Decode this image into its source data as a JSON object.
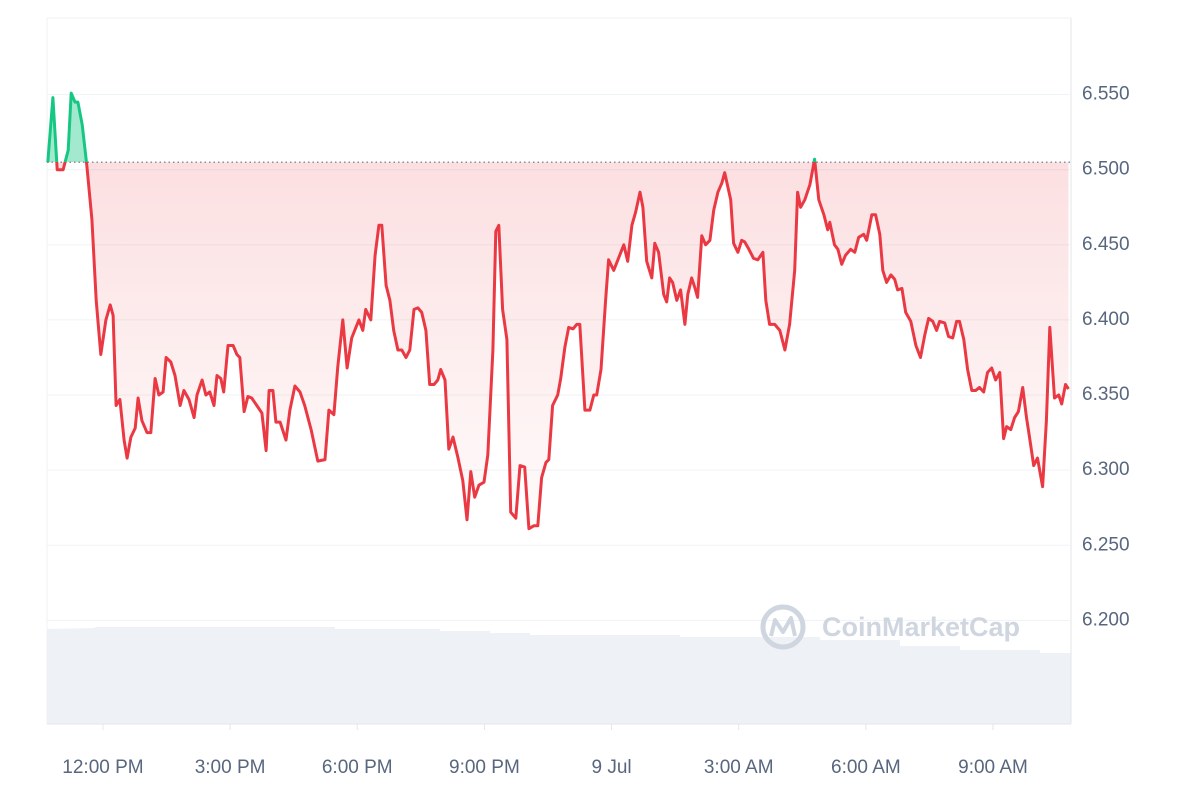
{
  "chart_data": {
    "type": "line",
    "watermark": "CoinMarketCap",
    "x": [
      10.7,
      10.82,
      10.92,
      11.06,
      11.18,
      11.25,
      11.34,
      11.41,
      11.51,
      11.62,
      11.74,
      11.84,
      11.95,
      12.07,
      12.17,
      12.24,
      12.31,
      12.4,
      12.5,
      12.57,
      12.66,
      12.76,
      12.83,
      12.92,
      13.04,
      13.13,
      13.23,
      13.32,
      13.42,
      13.49,
      13.6,
      13.7,
      13.82,
      13.91,
      14.03,
      14.15,
      14.22,
      14.34,
      14.43,
      14.52,
      14.62,
      14.69,
      14.78,
      14.85,
      14.95,
      15.07,
      15.16,
      15.23,
      15.33,
      15.42,
      15.51,
      15.63,
      15.75,
      15.85,
      15.92,
      16.01,
      16.08,
      16.18,
      16.32,
      16.41,
      16.53,
      16.65,
      16.76,
      16.91,
      17.07,
      17.24,
      17.33,
      17.45,
      17.54,
      17.66,
      17.76,
      17.87,
      17.94,
      18.04,
      18.13,
      18.2,
      18.32,
      18.42,
      18.51,
      18.58,
      18.68,
      18.77,
      18.86,
      18.96,
      19.05,
      19.15,
      19.24,
      19.34,
      19.43,
      19.52,
      19.62,
      19.71,
      19.81,
      19.9,
      19.97,
      20.07,
      20.16,
      20.26,
      20.37,
      20.49,
      20.59,
      20.68,
      20.77,
      20.87,
      20.99,
      21.08,
      21.2,
      21.27,
      21.34,
      21.43,
      21.53,
      21.62,
      21.74,
      21.84,
      21.95,
      22.05,
      22.17,
      22.26,
      22.35,
      22.45,
      22.52,
      22.61,
      22.73,
      22.8,
      22.9,
      22.99,
      23.09,
      23.18,
      23.25,
      23.37,
      23.49,
      23.58,
      23.65,
      23.75,
      23.86,
      23.93,
      24.05,
      24.15,
      24.29,
      24.38,
      24.48,
      24.57,
      24.67,
      24.74,
      24.83,
      24.95,
      25.02,
      25.11,
      25.23,
      25.3,
      25.37,
      25.44,
      25.54,
      25.63,
      25.73,
      25.8,
      25.89,
      25.96,
      26.03,
      26.13,
      26.22,
      26.32,
      26.41,
      26.51,
      26.6,
      26.67,
      26.81,
      26.88,
      26.98,
      27.07,
      27.14,
      27.24,
      27.35,
      27.45,
      27.57,
      27.64,
      27.73,
      27.85,
      27.97,
      28.09,
      28.2,
      28.32,
      28.39,
      28.46,
      28.56,
      28.68,
      28.79,
      28.89,
      29.01,
      29.1,
      29.15,
      29.26,
      29.34,
      29.43,
      29.52,
      29.64,
      29.74,
      29.83,
      29.95,
      30.02,
      30.14,
      30.23,
      30.33,
      30.4,
      30.49,
      30.59,
      30.68,
      30.75,
      30.85,
      30.94,
      31.06,
      31.18,
      31.29,
      31.39,
      31.48,
      31.58,
      31.67,
      31.74,
      31.86,
      31.95,
      32.05,
      32.14,
      32.21,
      32.31,
      32.4,
      32.5,
      32.59,
      32.68,
      32.78,
      32.87,
      32.97,
      33.06,
      33.16,
      33.25,
      33.32,
      33.42,
      33.51,
      33.6,
      33.7,
      33.79,
      33.86,
      33.96,
      34.05,
      34.17,
      34.26,
      34.34,
      34.45,
      34.55,
      34.62,
      34.71,
      34.78
    ],
    "values": [
      6.505,
      6.548,
      6.5,
      6.5,
      6.513,
      6.551,
      6.545,
      6.545,
      6.53,
      6.503,
      6.467,
      6.413,
      6.377,
      6.4,
      6.41,
      6.403,
      6.343,
      6.347,
      6.32,
      6.308,
      6.322,
      6.328,
      6.348,
      6.333,
      6.325,
      6.325,
      6.361,
      6.35,
      6.352,
      6.375,
      6.372,
      6.363,
      6.343,
      6.353,
      6.347,
      6.335,
      6.35,
      6.36,
      6.35,
      6.352,
      6.343,
      6.363,
      6.361,
      6.352,
      6.383,
      6.383,
      6.377,
      6.375,
      6.339,
      6.349,
      6.348,
      6.343,
      6.338,
      6.313,
      6.353,
      6.353,
      6.332,
      6.332,
      6.32,
      6.34,
      6.356,
      6.352,
      6.343,
      6.327,
      6.306,
      6.307,
      6.34,
      6.337,
      6.369,
      6.4,
      6.368,
      6.388,
      6.393,
      6.4,
      6.393,
      6.407,
      6.4,
      6.443,
      6.463,
      6.463,
      6.423,
      6.413,
      6.393,
      6.38,
      6.38,
      6.375,
      6.38,
      6.407,
      6.408,
      6.405,
      6.393,
      6.357,
      6.357,
      6.36,
      6.367,
      6.36,
      6.314,
      6.322,
      6.309,
      6.293,
      6.267,
      6.299,
      6.282,
      6.29,
      6.292,
      6.31,
      6.38,
      6.459,
      6.463,
      6.407,
      6.387,
      6.272,
      6.268,
      6.303,
      6.302,
      6.261,
      6.263,
      6.263,
      6.295,
      6.305,
      6.307,
      6.343,
      6.35,
      6.361,
      6.382,
      6.395,
      6.394,
      6.397,
      6.397,
      6.34,
      6.34,
      6.35,
      6.35,
      6.367,
      6.413,
      6.44,
      6.433,
      6.44,
      6.45,
      6.439,
      6.463,
      6.472,
      6.485,
      6.475,
      6.439,
      6.428,
      6.451,
      6.445,
      6.417,
      6.412,
      6.428,
      6.425,
      6.413,
      6.42,
      6.397,
      6.417,
      6.428,
      6.422,
      6.415,
      6.456,
      6.45,
      6.453,
      6.473,
      6.485,
      6.491,
      6.498,
      6.48,
      6.451,
      6.445,
      6.453,
      6.452,
      6.447,
      6.441,
      6.44,
      6.445,
      6.413,
      6.397,
      6.397,
      6.393,
      6.38,
      6.397,
      6.433,
      6.485,
      6.475,
      6.48,
      6.49,
      6.507,
      6.48,
      6.47,
      6.46,
      6.465,
      6.45,
      6.447,
      6.437,
      6.443,
      6.447,
      6.445,
      6.455,
      6.457,
      6.453,
      6.47,
      6.47,
      6.457,
      6.433,
      6.425,
      6.43,
      6.427,
      6.42,
      6.421,
      6.405,
      6.399,
      6.383,
      6.375,
      6.39,
      6.401,
      6.399,
      6.393,
      6.399,
      6.398,
      6.389,
      6.388,
      6.399,
      6.399,
      6.387,
      6.367,
      6.353,
      6.353,
      6.355,
      6.352,
      6.365,
      6.368,
      6.36,
      6.365,
      6.321,
      6.329,
      6.327,
      6.335,
      6.339,
      6.355,
      6.335,
      6.322,
      6.303,
      6.308,
      6.289,
      6.333,
      6.395,
      6.348,
      6.35,
      6.344,
      6.357,
      6.354
    ],
    "baseline": 6.505,
    "up_color": "#16c784",
    "down_color": "#ea3943",
    "xlim": [
      10.68,
      34.84
    ],
    "xticks": [
      {
        "value": 12,
        "label": "12:00 PM"
      },
      {
        "value": 15,
        "label": "3:00 PM"
      },
      {
        "value": 18,
        "label": "6:00 PM"
      },
      {
        "value": 21,
        "label": "9:00 PM"
      },
      {
        "value": 24,
        "label": "9 Jul"
      },
      {
        "value": 27,
        "label": "3:00 AM"
      },
      {
        "value": 30,
        "label": "6:00 AM"
      },
      {
        "value": 33,
        "label": "9:00 AM"
      }
    ],
    "ylim": [
      6.131,
      6.601
    ],
    "yticks": [
      {
        "value": 6.2,
        "label": "6.200"
      },
      {
        "value": 6.25,
        "label": "6.250"
      },
      {
        "value": 6.3,
        "label": "6.300"
      },
      {
        "value": 6.35,
        "label": "6.350"
      },
      {
        "value": 6.4,
        "label": "6.400"
      },
      {
        "value": 6.45,
        "label": "6.450"
      },
      {
        "value": 6.5,
        "label": "6.500"
      },
      {
        "value": 6.55,
        "label": "6.550"
      }
    ],
    "grid": true
  }
}
